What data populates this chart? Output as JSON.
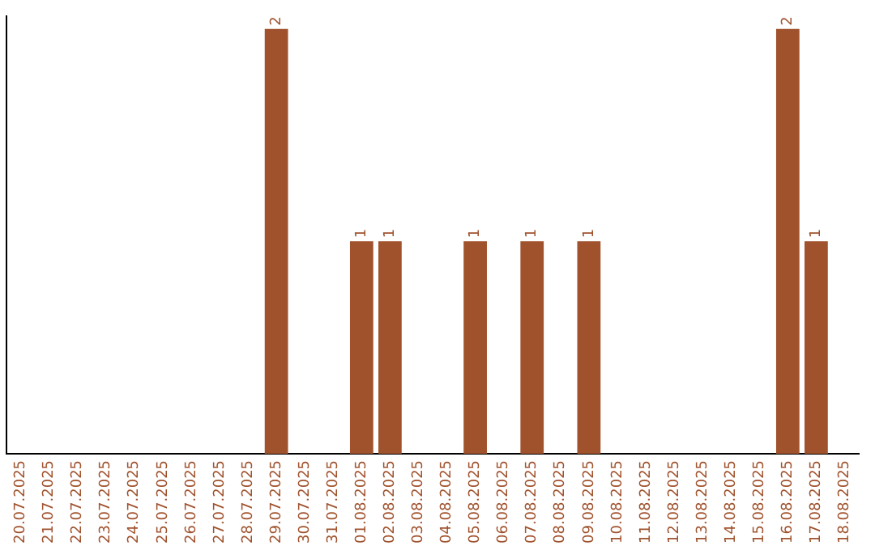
{
  "chart_data": {
    "type": "bar",
    "categories": [
      "20.07.2025",
      "21.07.2025",
      "22.07.2025",
      "23.07.2025",
      "24.07.2025",
      "25.07.2025",
      "26.07.2025",
      "27.07.2025",
      "28.07.2025",
      "29.07.2025",
      "30.07.2025",
      "31.07.2025",
      "01.08.2025",
      "02.08.2025",
      "03.08.2025",
      "04.08.2025",
      "05.08.2025",
      "06.08.2025",
      "07.08.2025",
      "08.08.2025",
      "09.08.2025",
      "10.08.2025",
      "11.08.2025",
      "12.08.2025",
      "13.08.2025",
      "14.08.2025",
      "15.08.2025",
      "16.08.2025",
      "17.08.2025",
      "18.08.2025"
    ],
    "values": [
      0,
      0,
      0,
      0,
      0,
      0,
      0,
      0,
      0,
      2,
      0,
      0,
      1,
      1,
      0,
      0,
      1,
      0,
      1,
      0,
      1,
      0,
      0,
      0,
      0,
      0,
      0,
      2,
      1,
      0
    ],
    "value_labels": [
      null,
      null,
      null,
      null,
      null,
      null,
      null,
      null,
      null,
      "2",
      null,
      null,
      "1",
      "1",
      null,
      null,
      "1",
      null,
      "1",
      null,
      "1",
      null,
      null,
      null,
      null,
      null,
      null,
      "2",
      "1",
      null
    ],
    "color": "#a0522d",
    "ylim": [
      0,
      2.06
    ],
    "tick_labels": "x",
    "grid": false,
    "legend": false
  }
}
